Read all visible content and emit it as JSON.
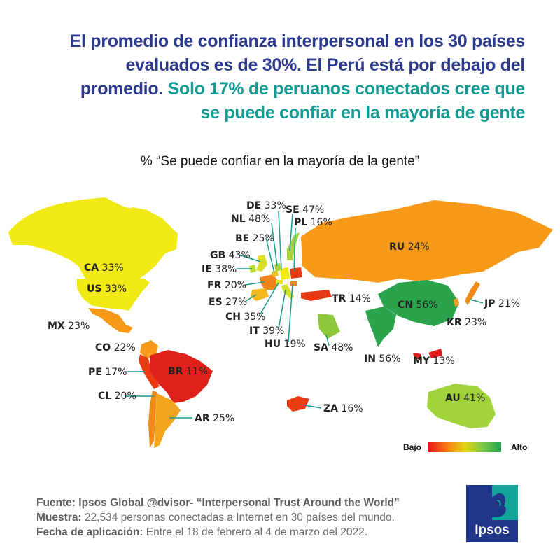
{
  "headline": {
    "line1": "El promedio de confianza interpersonal en los 30 países",
    "line2": "evaluados es de 30%. El Perú está por debajo del",
    "line3_blue": "promedio.",
    "line3_teal": "Solo 17% de peruanos conectados cree que",
    "line4_teal": "se puede confiar en la mayoría de gente"
  },
  "map_title": "% “Se puede confiar en la mayoría de la gente”",
  "colors": {
    "headline_blue": "#2b3a8f",
    "headline_teal": "#129a93",
    "leader_line": "#1a9a8f",
    "scale": [
      "#e8141c",
      "#f57a12",
      "#e7d318",
      "#7ac84a",
      "#1fa34a"
    ]
  },
  "countries": [
    {
      "code": "CA",
      "value": "33%"
    },
    {
      "code": "US",
      "value": "33%"
    },
    {
      "code": "MX",
      "value": "23%"
    },
    {
      "code": "CO",
      "value": "22%"
    },
    {
      "code": "PE",
      "value": "17%"
    },
    {
      "code": "BR",
      "value": "11%"
    },
    {
      "code": "CL",
      "value": "20%"
    },
    {
      "code": "AR",
      "value": "25%"
    },
    {
      "code": "DE",
      "value": "33%"
    },
    {
      "code": "SE",
      "value": "47%"
    },
    {
      "code": "NL",
      "value": "48%"
    },
    {
      "code": "PL",
      "value": "16%"
    },
    {
      "code": "BE",
      "value": "25%"
    },
    {
      "code": "GB",
      "value": "43%"
    },
    {
      "code": "IE",
      "value": "38%"
    },
    {
      "code": "FR",
      "value": "20%"
    },
    {
      "code": "ES",
      "value": "27%"
    },
    {
      "code": "CH",
      "value": "35%"
    },
    {
      "code": "IT",
      "value": "39%"
    },
    {
      "code": "HU",
      "value": "19%"
    },
    {
      "code": "RU",
      "value": "24%"
    },
    {
      "code": "TR",
      "value": "14%"
    },
    {
      "code": "CN",
      "value": "56%"
    },
    {
      "code": "JP",
      "value": "21%"
    },
    {
      "code": "KR",
      "value": "23%"
    },
    {
      "code": "SA",
      "value": "48%"
    },
    {
      "code": "IN",
      "value": "56%"
    },
    {
      "code": "MY",
      "value": "13%"
    },
    {
      "code": "ZA",
      "value": "16%"
    },
    {
      "code": "AU",
      "value": "41%"
    }
  ],
  "legend": {
    "low": "Bajo",
    "high": "Alto"
  },
  "footer": {
    "source_label": "Fuente: Ipsos Global @dvisor- “Interpersonal Trust Around the World”",
    "sample_label": "Muestra:",
    "sample_text": " 22,534 personas conectadas a Internet en 30 países del mundo.",
    "date_label": "Fecha de aplicación:",
    "date_text": " Entre el 18 de febrero al 4 de marzo del 2022."
  },
  "logo": {
    "text": "Ipsos",
    "bg": "#203488",
    "accent": "#11a39a"
  }
}
